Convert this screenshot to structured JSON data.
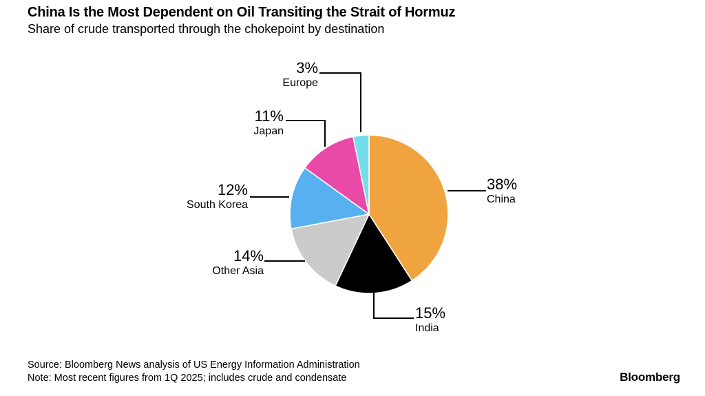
{
  "header": {
    "title": "China Is the Most Dependent on Oil Transiting the Strait of Hormuz",
    "subtitle": "Share of crude transported through the chokepoint by destination"
  },
  "chart_data": {
    "type": "pie",
    "title": "Share of crude transported through the chokepoint by destination",
    "unit": "%",
    "start_angle_deg": 0,
    "direction": "clockwise",
    "slice_separator_color": "#ffffff",
    "slices": [
      {
        "label": "China",
        "value": 38,
        "value_label": "38%",
        "color": "#F0A43F"
      },
      {
        "label": "India",
        "value": 15,
        "value_label": "15%",
        "color": "#000000"
      },
      {
        "label": "Other Asia",
        "value": 14,
        "value_label": "14%",
        "color": "#CBCBCB"
      },
      {
        "label": "South Korea",
        "value": 12,
        "value_label": "12%",
        "color": "#57B1F0"
      },
      {
        "label": "Japan",
        "value": 11,
        "value_label": "11%",
        "color": "#E949A7"
      },
      {
        "label": "Europe",
        "value": 3,
        "value_label": "3%",
        "color": "#73DDE9"
      }
    ]
  },
  "footer": {
    "source": "Source: Bloomberg News analysis of US Energy Information Administration",
    "note": "Note: Most recent figures from 1Q 2025; includes crude and condensate",
    "brand": "Bloomberg"
  }
}
